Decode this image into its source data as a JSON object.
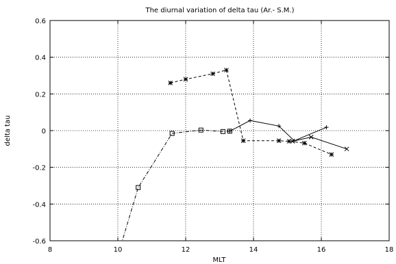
{
  "chart_data": {
    "type": "line",
    "title": "The diurnal variation of delta tau (Ar.- S.M.)",
    "xlabel": "MLT",
    "ylabel": "delta tau",
    "xlim": [
      8,
      18
    ],
    "ylim": [
      -0.6,
      0.6
    ],
    "xticks": [
      8,
      10,
      12,
      14,
      16,
      18
    ],
    "yticks": [
      -0.6,
      -0.4,
      -0.2,
      0,
      0.2,
      0.4,
      0.6
    ],
    "xtick_labels": [
      "8",
      "10",
      "12",
      "14",
      "16",
      "18"
    ],
    "ytick_labels": [
      "-0.6",
      "-0.4",
      "-0.2",
      "0",
      "0.2",
      "0.4",
      "0.6"
    ],
    "grid": true,
    "legend": false,
    "series": [
      {
        "marker": "square",
        "linestyle": "dash-dot",
        "color": "#000000",
        "points": [
          [
            10.1,
            -0.62
          ],
          [
            10.6,
            -0.31
          ],
          [
            11.6,
            -0.015
          ],
          [
            12.45,
            0.003
          ],
          [
            13.1,
            -0.005
          ],
          [
            13.3,
            -0.003
          ]
        ]
      },
      {
        "marker": "plus",
        "linestyle": "solid",
        "color": "#000000",
        "points": [
          [
            13.3,
            -0.003
          ],
          [
            13.9,
            0.055
          ],
          [
            14.75,
            0.025
          ],
          [
            15.2,
            -0.055
          ],
          [
            16.15,
            0.018
          ]
        ]
      },
      {
        "marker": "asterisk",
        "linestyle": "dashed",
        "color": "#000000",
        "points": [
          [
            11.55,
            0.26
          ],
          [
            12.0,
            0.28
          ],
          [
            12.8,
            0.31
          ],
          [
            13.2,
            0.33
          ],
          [
            13.7,
            -0.055
          ],
          [
            14.75,
            -0.055
          ],
          [
            15.05,
            -0.058
          ],
          [
            15.5,
            -0.068
          ],
          [
            16.3,
            -0.13
          ]
        ]
      },
      {
        "marker": "x",
        "linestyle": "solid",
        "color": "#000000",
        "points": [
          [
            15.15,
            -0.058
          ],
          [
            15.7,
            -0.035
          ],
          [
            16.75,
            -0.1
          ]
        ]
      }
    ]
  }
}
